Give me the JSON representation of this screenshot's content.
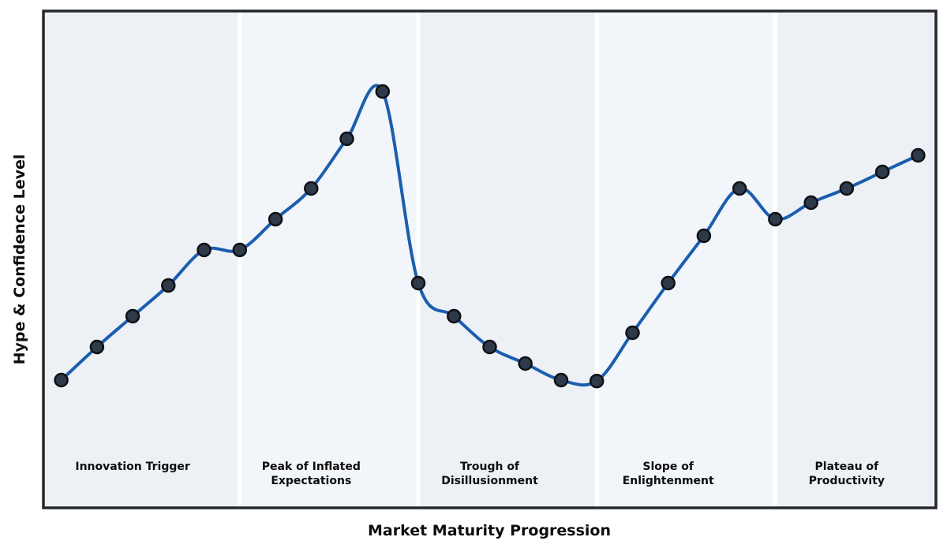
{
  "figure": {
    "background": "#ffffff"
  },
  "chart_data": {
    "type": "line",
    "title": "",
    "xlabel": "Market Maturity Progression",
    "ylabel": "Hype & Confidence Level",
    "x": [
      0,
      1,
      2,
      3,
      4,
      5,
      6,
      7,
      8,
      9,
      10,
      11,
      12,
      13,
      14,
      15,
      16,
      17,
      18,
      19,
      20,
      21,
      22,
      23,
      24
    ],
    "values": [
      27,
      34,
      40.5,
      47,
      54.5,
      54.5,
      61,
      67.5,
      78,
      88,
      47.5,
      40.5,
      34,
      30.5,
      27,
      26.8,
      37,
      47.5,
      57.5,
      67.5,
      61,
      64.5,
      67.5,
      71,
      74.5
    ],
    "xlim": [
      -0.5,
      24.5
    ],
    "ylim": [
      0,
      105
    ],
    "grid": false,
    "legend_position": "none",
    "line_style": "smooth-spline",
    "show_markers": true,
    "axis_ticks": "none",
    "phases": [
      {
        "label": "Innovation Trigger",
        "label_lines": [
          "Innovation Trigger"
        ],
        "x_start": -0.5,
        "x_end": 5,
        "label_x": 2
      },
      {
        "label": "Peak of Inflated Expectations",
        "label_lines": [
          "Peak of Inflated",
          "Expectations"
        ],
        "x_start": 5,
        "x_end": 10,
        "label_x": 7
      },
      {
        "label": "Trough of Disillusionment",
        "label_lines": [
          "Trough of",
          "Disillusionment"
        ],
        "x_start": 10,
        "x_end": 15,
        "label_x": 12
      },
      {
        "label": "Slope of Enlightenment",
        "label_lines": [
          "Slope of",
          "Enlightenment"
        ],
        "x_start": 15,
        "x_end": 20,
        "label_x": 17
      },
      {
        "label": "Plateau of Productivity",
        "label_lines": [
          "Plateau of",
          "Productivity"
        ],
        "x_start": 20,
        "x_end": 24.5,
        "label_x": 22
      }
    ]
  },
  "colors": {
    "line": "#1b5eae",
    "marker_fill": "#2e3a49",
    "marker_edge": "#0e1116",
    "band_odd": "#edf1f6",
    "band_even": "#f2f5f9",
    "separator": "#ffffff",
    "plot_border": "#24282c",
    "text": "#0d0d0d"
  }
}
